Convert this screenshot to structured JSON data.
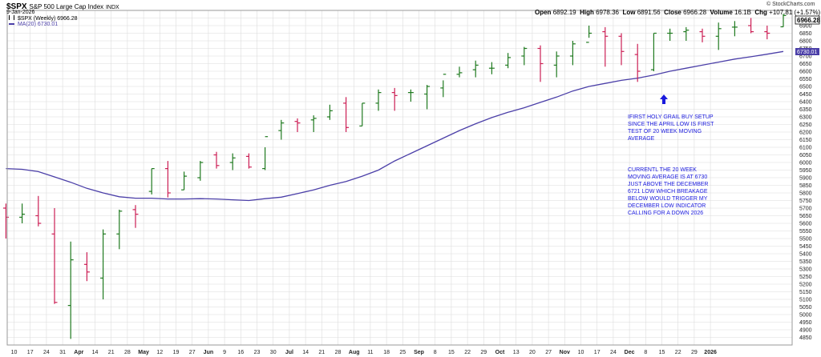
{
  "header": {
    "symbol": "$SPX",
    "name": "S&P 500 Large Cap Index",
    "exchange": "INDX",
    "date": "9-Jan-2026",
    "open_label": "Open",
    "open": "6892.19",
    "high_label": "High",
    "high": "6978.36",
    "low_label": "Low",
    "low": "6891.56",
    "close_label": "Close",
    "close": "6966.28",
    "volume_label": "Volume",
    "volume": "16.1B",
    "chg_label": "Chg",
    "chg": "+107.81 (+1.57%)",
    "chg_icon": "up-triangle",
    "credit": "© StockCharts.com"
  },
  "legend": {
    "series1": "$SPX (Weekly) 6966.28",
    "series2": "MA(20) 6730.01"
  },
  "price_tags": {
    "last": "6966.28",
    "ma": "6730.01"
  },
  "annotations": {
    "arrow_icon": "up-arrow",
    "note1": "IFIRST HOLY GRAIL BUY SETUP SINCE THE APRIL LOW IS FIRST TEST OF 20 WEEK MOVING AVERAGE",
    "note2": "CURRENTL THE 20 WEEK MOVING AVERAGE IS AT 6730 JUST ABOVE THE DECEMBER 6721 LOW WHICH BREAKAGE BELOW WOULD TRIGGER MY DECEMBER LOW INDICATOR CALLING FOR A DOWN 2026"
  },
  "colors": {
    "up": "#1f7a1f",
    "down": "#cc1f55",
    "ma": "#4b3fa8",
    "annotation": "#1a1add",
    "grid": "#dcdcdc"
  },
  "chart_data": {
    "type": "ohlc",
    "ylim": [
      4800,
      7000
    ],
    "y_ticks": [
      4850,
      4900,
      4950,
      5000,
      5050,
      5100,
      5150,
      5200,
      5250,
      5300,
      5350,
      5400,
      5450,
      5500,
      5550,
      5600,
      5650,
      5700,
      5750,
      5800,
      5850,
      5900,
      5950,
      6000,
      6050,
      6100,
      6150,
      6200,
      6250,
      6300,
      6350,
      6400,
      6450,
      6500,
      6550,
      6600,
      6650,
      6700,
      6750,
      6800,
      6850,
      6900,
      6950
    ],
    "x_labels": [
      "10",
      "17",
      "24",
      "31",
      "Apr",
      "14",
      "21",
      "28",
      "May",
      "12",
      "19",
      "27",
      "Jun",
      "9",
      "16",
      "23",
      "30",
      "Jul",
      "14",
      "21",
      "28",
      "Aug",
      "11",
      "18",
      "25",
      "Sep",
      "8",
      "15",
      "22",
      "29",
      "Oct",
      "13",
      "20",
      "27",
      "Nov",
      "10",
      "17",
      "24",
      "Dec",
      "8",
      "15",
      "22",
      "29",
      "2026"
    ],
    "x_label_positions": [
      0,
      1,
      2,
      3,
      4,
      5,
      6,
      7,
      8,
      9,
      10,
      11,
      12,
      13,
      14,
      15,
      16,
      17,
      18,
      19,
      20,
      21,
      22,
      23,
      24,
      25,
      26,
      27,
      28,
      29,
      30,
      31,
      32,
      33,
      34,
      35,
      36,
      37,
      38,
      39,
      40,
      41,
      42,
      43
    ],
    "bold_labels": [
      "Apr",
      "May",
      "Jun",
      "Jul",
      "Aug",
      "Sep",
      "Oct",
      "Nov",
      "Dec",
      "2026"
    ],
    "series": [
      {
        "name": "$SPX (Weekly)",
        "bars": [
          [
            -0.5,
            5700,
            5730,
            5500,
            5640
          ],
          [
            0.5,
            5640,
            5730,
            5600,
            5660
          ],
          [
            1.5,
            5650,
            5780,
            5580,
            5600
          ],
          [
            2.5,
            5530,
            5700,
            5070,
            5080
          ],
          [
            3.5,
            5060,
            5480,
            4840,
            5360
          ],
          [
            4.5,
            5330,
            5410,
            5220,
            5280
          ],
          [
            5.5,
            5240,
            5560,
            5100,
            5530
          ],
          [
            6.5,
            5530,
            5690,
            5430,
            5680
          ],
          [
            7.5,
            5690,
            5720,
            5570,
            5660
          ],
          [
            8.5,
            5810,
            5960,
            5790,
            5960
          ],
          [
            9.5,
            5960,
            6010,
            5770,
            5800
          ],
          [
            10.5,
            5820,
            5940,
            5820,
            5910
          ],
          [
            11.5,
            5900,
            6010,
            5880,
            6000
          ],
          [
            12.5,
            6050,
            6070,
            5960,
            5980
          ],
          [
            13.5,
            6000,
            6060,
            5950,
            6030
          ],
          [
            14.5,
            6040,
            6060,
            5960,
            5970
          ],
          [
            15.5,
            5960,
            6100,
            5950,
            6170
          ],
          [
            16.5,
            6210,
            6280,
            6150,
            6260
          ],
          [
            17.5,
            6270,
            6290,
            6200,
            6260
          ],
          [
            18.5,
            6280,
            6310,
            6200,
            6290
          ],
          [
            19.5,
            6300,
            6380,
            6280,
            6340
          ],
          [
            20.5,
            6390,
            6430,
            6200,
            6230
          ],
          [
            21.5,
            6240,
            6390,
            6240,
            6390
          ],
          [
            22.5,
            6390,
            6480,
            6340,
            6460
          ],
          [
            23.5,
            6460,
            6490,
            6340,
            6440
          ],
          [
            24.5,
            6460,
            6480,
            6400,
            6460
          ],
          [
            25.5,
            6450,
            6510,
            6350,
            6500
          ],
          [
            26.5,
            6490,
            6540,
            6430,
            6580
          ],
          [
            27.5,
            6580,
            6630,
            6560,
            6590
          ],
          [
            28.5,
            6610,
            6670,
            6560,
            6640
          ],
          [
            29.5,
            6620,
            6660,
            6580,
            6620
          ],
          [
            30.5,
            6640,
            6720,
            6620,
            6690
          ],
          [
            31.5,
            6700,
            6760,
            6640,
            6750
          ],
          [
            32.5,
            6750,
            6770,
            6530,
            6650
          ],
          [
            33.5,
            6640,
            6730,
            6560,
            6700
          ],
          [
            34.5,
            6700,
            6800,
            6640,
            6780
          ],
          [
            35.5,
            6790,
            6900,
            6820,
            6850
          ],
          [
            36.5,
            6860,
            6890,
            6630,
            6830
          ],
          [
            37.5,
            6830,
            6850,
            6640,
            6730
          ],
          [
            38.5,
            6710,
            6780,
            6530,
            6600
          ],
          [
            39.5,
            6610,
            6850,
            6600,
            6850
          ],
          [
            40.5,
            6850,
            6880,
            6800,
            6850
          ],
          [
            41.5,
            6860,
            6890,
            6800,
            6870
          ],
          [
            42.5,
            6860,
            6880,
            6790,
            6830
          ],
          [
            43.5,
            6830,
            6920,
            6740,
            6880
          ],
          [
            44.5,
            6890,
            6930,
            6830,
            6890
          ],
          [
            45.5,
            6900,
            6950,
            6850,
            6860
          ],
          [
            46.5,
            6860,
            6900,
            6810,
            6850
          ],
          [
            47.5,
            6892.19,
            6978.36,
            6891.56,
            6966.28
          ]
        ]
      },
      {
        "name": "MA(20)",
        "points": [
          [
            -0.5,
            5960
          ],
          [
            0.5,
            5955
          ],
          [
            1.5,
            5940
          ],
          [
            2.5,
            5905
          ],
          [
            3.5,
            5870
          ],
          [
            4.5,
            5830
          ],
          [
            5.5,
            5800
          ],
          [
            6.5,
            5775
          ],
          [
            7.5,
            5765
          ],
          [
            8.5,
            5765
          ],
          [
            9.5,
            5760
          ],
          [
            10.5,
            5760
          ],
          [
            11.5,
            5762
          ],
          [
            12.5,
            5760
          ],
          [
            13.5,
            5755
          ],
          [
            14.5,
            5750
          ],
          [
            15.5,
            5762
          ],
          [
            16.5,
            5772
          ],
          [
            17.5,
            5795
          ],
          [
            18.5,
            5820
          ],
          [
            19.5,
            5850
          ],
          [
            20.5,
            5875
          ],
          [
            21.5,
            5910
          ],
          [
            22.5,
            5950
          ],
          [
            23.5,
            6010
          ],
          [
            24.5,
            6060
          ],
          [
            25.5,
            6110
          ],
          [
            26.5,
            6160
          ],
          [
            27.5,
            6210
          ],
          [
            28.5,
            6255
          ],
          [
            29.5,
            6295
          ],
          [
            30.5,
            6330
          ],
          [
            31.5,
            6360
          ],
          [
            32.5,
            6395
          ],
          [
            33.5,
            6430
          ],
          [
            34.5,
            6470
          ],
          [
            35.5,
            6500
          ],
          [
            36.5,
            6520
          ],
          [
            37.5,
            6540
          ],
          [
            38.5,
            6555
          ],
          [
            39.5,
            6575
          ],
          [
            40.5,
            6600
          ],
          [
            41.5,
            6620
          ],
          [
            42.5,
            6640
          ],
          [
            43.5,
            6660
          ],
          [
            44.5,
            6680
          ],
          [
            45.5,
            6695
          ],
          [
            46.5,
            6712
          ],
          [
            47.5,
            6730.01
          ]
        ]
      }
    ]
  }
}
